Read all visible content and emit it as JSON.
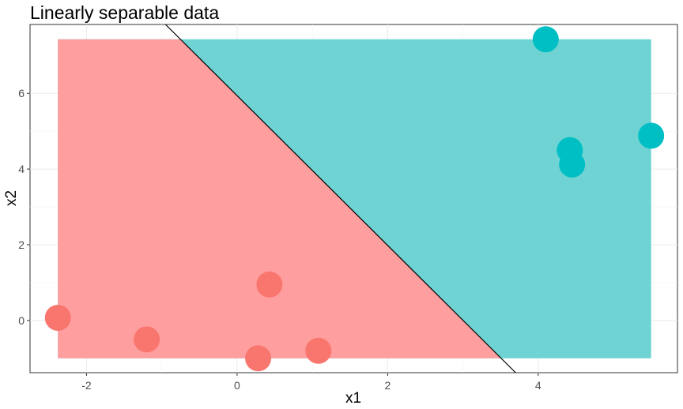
{
  "chart_data": {
    "type": "scatter",
    "title": "Linearly separable data",
    "xlabel": "x1",
    "ylabel": "x2",
    "xlim": [
      -2.75,
      5.85
    ],
    "ylim": [
      -1.38,
      7.82
    ],
    "x_ticks": [
      -2,
      0,
      2,
      4
    ],
    "y_ticks": [
      0,
      2,
      4,
      6
    ],
    "grid": true,
    "legend": "none",
    "colors": {
      "class_a": "#F8766D",
      "class_b": "#00BFC4",
      "region_a": "#FF9E9E",
      "region_b": "#6FD3D3",
      "boundary": "#000000"
    },
    "region": {
      "x_range": [
        -2.38,
        5.5
      ],
      "y_range": [
        -1.0,
        7.43
      ]
    },
    "boundary_line": {
      "points": [
        [
          -0.95,
          7.82
        ],
        [
          3.7,
          -1.38
        ]
      ]
    },
    "series": [
      {
        "class": "a",
        "points": [
          {
            "x": -2.38,
            "y": 0.07
          },
          {
            "x": -1.2,
            "y": -0.5
          },
          {
            "x": 0.28,
            "y": -1.0
          },
          {
            "x": 0.43,
            "y": 0.95
          },
          {
            "x": 1.08,
            "y": -0.8
          }
        ]
      },
      {
        "class": "b",
        "points": [
          {
            "x": 4.1,
            "y": 7.43
          },
          {
            "x": 4.42,
            "y": 4.5
          },
          {
            "x": 4.45,
            "y": 4.12
          },
          {
            "x": 5.5,
            "y": 4.88
          }
        ]
      }
    ]
  }
}
